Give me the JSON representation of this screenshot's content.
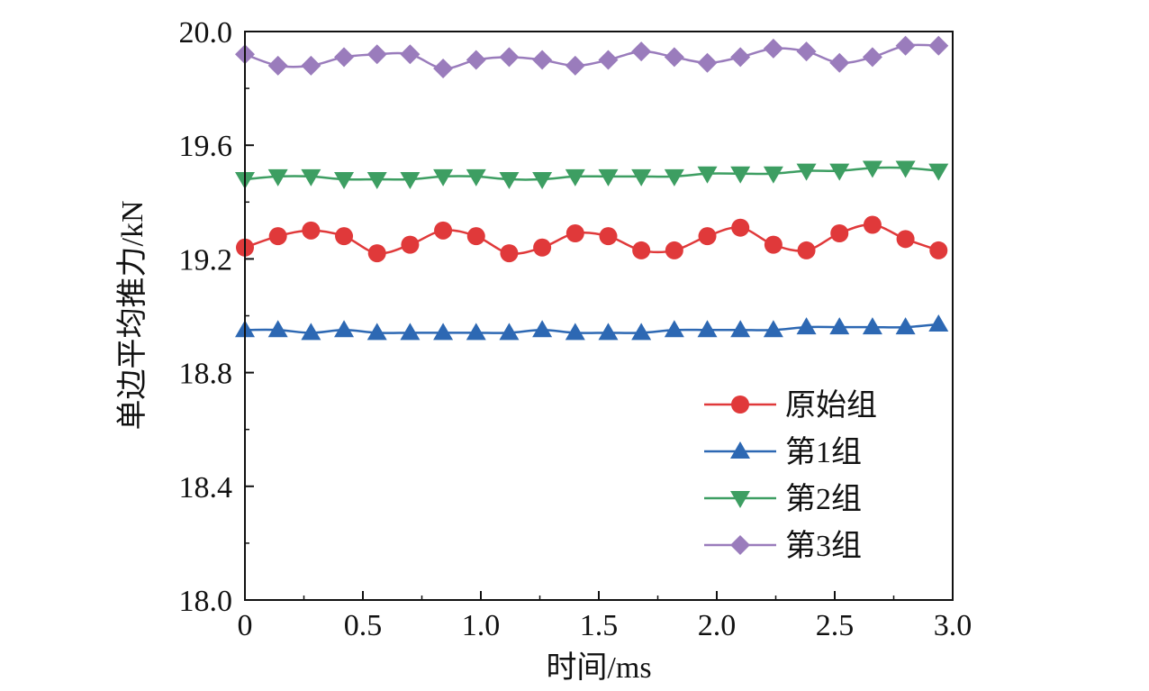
{
  "chart_data": {
    "type": "line",
    "xlabel": "时间/ms",
    "ylabel": "单边平均推力/kN",
    "xlim": [
      0,
      3.0
    ],
    "ylim": [
      18.0,
      20.0
    ],
    "x_ticks": [
      "0",
      "0.5",
      "1.0",
      "1.5",
      "2.0",
      "2.5",
      "3.0"
    ],
    "y_ticks": [
      "18.0",
      "18.4",
      "18.8",
      "19.2",
      "19.6",
      "20.0"
    ],
    "grid": false,
    "legend_position": "bottom-right",
    "x": [
      0,
      0.14,
      0.28,
      0.42,
      0.56,
      0.7,
      0.84,
      0.98,
      1.12,
      1.26,
      1.4,
      1.54,
      1.68,
      1.82,
      1.96,
      2.1,
      2.24,
      2.38,
      2.52,
      2.66,
      2.8,
      2.94
    ],
    "series": [
      {
        "name": "原始组",
        "color": "#e0393a",
        "marker": "circle",
        "values": [
          19.24,
          19.28,
          19.3,
          19.28,
          19.22,
          19.25,
          19.3,
          19.28,
          19.22,
          19.24,
          19.29,
          19.28,
          19.23,
          19.23,
          19.28,
          19.31,
          19.25,
          19.23,
          19.29,
          19.32,
          19.27,
          19.23
        ]
      },
      {
        "name": "第1组",
        "color": "#2d68b3",
        "marker": "triangle-up",
        "values": [
          18.95,
          18.95,
          18.94,
          18.95,
          18.94,
          18.94,
          18.94,
          18.94,
          18.94,
          18.95,
          18.94,
          18.94,
          18.94,
          18.95,
          18.95,
          18.95,
          18.95,
          18.96,
          18.96,
          18.96,
          18.96,
          18.97
        ]
      },
      {
        "name": "第2组",
        "color": "#3d9e62",
        "marker": "triangle-down",
        "values": [
          19.48,
          19.49,
          19.49,
          19.48,
          19.48,
          19.48,
          19.49,
          19.49,
          19.48,
          19.48,
          19.49,
          19.49,
          19.49,
          19.49,
          19.5,
          19.5,
          19.5,
          19.51,
          19.51,
          19.52,
          19.52,
          19.51
        ]
      },
      {
        "name": "第3组",
        "color": "#9a7cbc",
        "marker": "diamond",
        "values": [
          19.92,
          19.88,
          19.88,
          19.91,
          19.92,
          19.92,
          19.87,
          19.9,
          19.91,
          19.9,
          19.88,
          19.9,
          19.93,
          19.91,
          19.89,
          19.91,
          19.94,
          19.93,
          19.89,
          19.91,
          19.95,
          19.95
        ]
      }
    ]
  }
}
